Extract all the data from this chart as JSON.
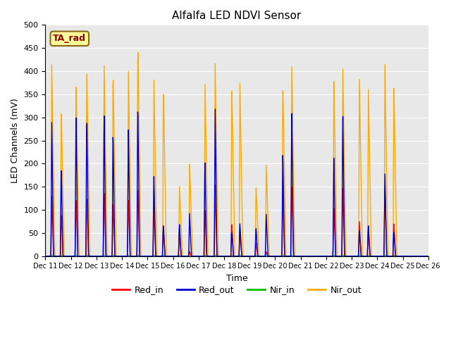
{
  "title": "Alfalfa LED NDVI Sensor",
  "ylabel": "LED Channels (mV)",
  "xlabel": "Time",
  "annotation": "TA_rad",
  "ylim": [
    0,
    500
  ],
  "bg_color": "#e8e8e8",
  "grid_color": "white",
  "colors": {
    "Red_in": "#ff0000",
    "Red_out": "#0000cc",
    "Nir_in": "#00bb00",
    "Nir_out": "#ffaa00"
  },
  "xtick_labels": [
    "Dec 11",
    "Dec 12",
    "Dec 13",
    "Dec 14",
    "Dec 15",
    "Dec 16",
    "Dec 17",
    "Dec 18",
    "Dec 19",
    "Dec 20",
    "Dec 21",
    "Dec 22",
    "Dec 23",
    "Dec 24",
    "Dec 25",
    "Dec 26"
  ],
  "pulses": [
    {
      "t": 0.25,
      "ri": 130,
      "ro": 290,
      "ni": 2,
      "no": 415
    },
    {
      "t": 0.62,
      "ri": 95,
      "ro": 200,
      "ni": 2,
      "no": 322
    },
    {
      "t": 1.2,
      "ri": 125,
      "ro": 310,
      "ni": 2,
      "no": 385
    },
    {
      "t": 1.62,
      "ri": 135,
      "ro": 315,
      "ni": 2,
      "no": 415
    },
    {
      "t": 2.3,
      "ri": 143,
      "ro": 320,
      "ni": 2,
      "no": 425
    },
    {
      "t": 2.65,
      "ri": 120,
      "ro": 275,
      "ni": 2,
      "no": 408
    },
    {
      "t": 3.25,
      "ri": 125,
      "ro": 282,
      "ni": 2,
      "no": 407
    },
    {
      "t": 3.62,
      "ri": 155,
      "ro": 340,
      "ni": 2,
      "no": 470
    },
    {
      "t": 4.25,
      "ri": 110,
      "ro": 180,
      "ni": 2,
      "no": 390
    },
    {
      "t": 4.62,
      "ri": 60,
      "ro": 70,
      "ni": 2,
      "no": 375
    },
    {
      "t": 5.25,
      "ri": 60,
      "ro": 72,
      "ni": 2,
      "no": 155
    },
    {
      "t": 5.65,
      "ri": 10,
      "ro": 93,
      "ni": 2,
      "no": 200
    },
    {
      "t": 6.25,
      "ri": 105,
      "ro": 215,
      "ni": 2,
      "no": 385
    },
    {
      "t": 6.65,
      "ri": 155,
      "ro": 320,
      "ni": 2,
      "no": 418
    },
    {
      "t": 7.3,
      "ri": 75,
      "ro": 55,
      "ni": 2,
      "no": 380
    },
    {
      "t": 7.62,
      "ri": 60,
      "ro": 70,
      "ni": 2,
      "no": 375
    },
    {
      "t": 8.25,
      "ri": 30,
      "ro": 65,
      "ni": 2,
      "no": 155
    },
    {
      "t": 8.65,
      "ri": 10,
      "ro": 93,
      "ni": 2,
      "no": 200
    },
    {
      "t": 9.3,
      "ri": 140,
      "ro": 230,
      "ni": 2,
      "no": 385
    },
    {
      "t": 9.65,
      "ri": 155,
      "ro": 320,
      "ni": 2,
      "no": 418
    },
    {
      "t": 11.3,
      "ri": 105,
      "ro": 215,
      "ni": 2,
      "no": 385
    },
    {
      "t": 11.65,
      "ri": 155,
      "ro": 320,
      "ni": 2,
      "no": 418
    },
    {
      "t": 12.3,
      "ri": 75,
      "ro": 55,
      "ni": 2,
      "no": 383
    },
    {
      "t": 12.65,
      "ri": 60,
      "ro": 70,
      "ni": 2,
      "no": 375
    },
    {
      "t": 13.3,
      "ri": 155,
      "ro": 180,
      "ni": 2,
      "no": 418
    },
    {
      "t": 13.65,
      "ri": 75,
      "ro": 55,
      "ni": 2,
      "no": 380
    }
  ]
}
